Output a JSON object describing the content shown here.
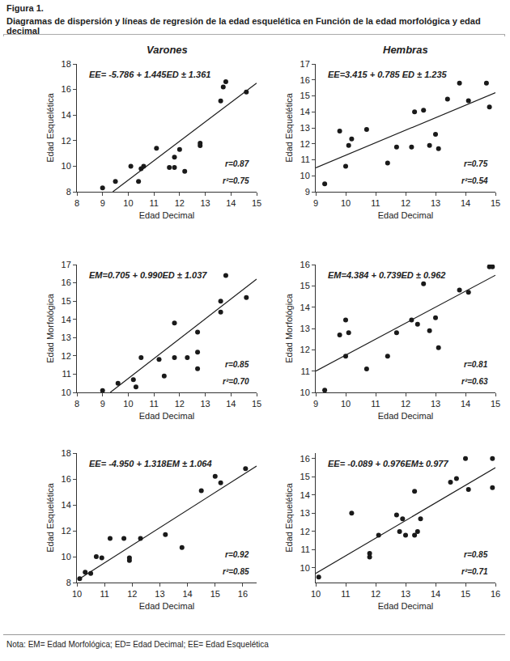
{
  "title": "Figura 1.",
  "subtitle": "Diagramas de dispersión y líneas de regresión de la edad esquelética en Función de la edad morfológica y edad decimal",
  "note": "Nota: EM= Edad Morfológica; ED= Edad Decimal; EE= Edad Esquelética",
  "chart_data": [
    {
      "type": "scatter",
      "title": "Varones",
      "x_label": "Edad Decimal",
      "y_label": "Edad Esquelética",
      "xlim": [
        8,
        15
      ],
      "xticks": [
        8,
        9,
        10,
        11,
        12,
        13,
        14,
        15
      ],
      "ylim": [
        8,
        18
      ],
      "yticks": [
        8,
        10,
        12,
        14,
        16,
        18
      ],
      "series": [
        {
          "type": "scatter",
          "marker": "circle",
          "color": "#1a1a1a",
          "x": [
            9.0,
            9.5,
            10.1,
            10.4,
            10.5,
            10.6,
            11.1,
            11.6,
            11.8,
            11.8,
            12.2,
            12.0,
            12.8,
            12.8,
            13.6,
            13.7,
            13.8,
            14.6
          ],
          "values": [
            8.3,
            8.8,
            10.0,
            8.8,
            9.8,
            10.0,
            11.4,
            9.9,
            10.7,
            9.9,
            9.6,
            11.3,
            11.6,
            11.8,
            15.1,
            16.2,
            16.6,
            15.8
          ]
        },
        {
          "type": "line",
          "color": "#1a1a1a",
          "x": [
            9.4,
            15.0
          ],
          "values": [
            8.0,
            16.5
          ]
        }
      ],
      "annotations": [
        "EE= -5.786 + 1.445ED ± 1.361",
        "r=0.87",
        "r²=0.75"
      ]
    },
    {
      "type": "scatter",
      "title": "Hembras",
      "x_label": "Edad Decimal",
      "y_label": "Edad Esquelética",
      "xlim": [
        9,
        15
      ],
      "xticks": [
        9,
        10,
        11,
        12,
        13,
        14,
        15
      ],
      "ylim": [
        9,
        17
      ],
      "yticks": [
        9,
        10,
        11,
        12,
        13,
        14,
        15,
        16,
        17
      ],
      "series": [
        {
          "type": "scatter",
          "marker": "circle",
          "color": "#1a1a1a",
          "x": [
            9.3,
            9.8,
            10.0,
            10.1,
            10.2,
            10.7,
            11.4,
            11.7,
            12.2,
            12.3,
            12.6,
            12.8,
            13.0,
            13.1,
            13.4,
            13.8,
            14.1,
            14.7,
            14.8
          ],
          "values": [
            9.5,
            12.8,
            10.6,
            11.9,
            12.3,
            12.9,
            10.8,
            11.8,
            11.8,
            14.0,
            14.1,
            11.9,
            12.6,
            11.7,
            14.8,
            15.8,
            14.7,
            15.8,
            14.3
          ]
        },
        {
          "type": "line",
          "color": "#1a1a1a",
          "x": [
            9.0,
            15.0
          ],
          "values": [
            10.5,
            15.2
          ]
        }
      ],
      "annotations": [
        "EE=3.415 + 0.785 ED ± 1.235",
        "r=0.75",
        "r²=0.54"
      ]
    },
    {
      "type": "scatter",
      "x_label": "Edad Decimal",
      "y_label": "Edad Morfológica",
      "xlim": [
        8,
        15
      ],
      "xticks": [
        8,
        9,
        10,
        11,
        12,
        13,
        14,
        15
      ],
      "ylim": [
        10,
        17
      ],
      "yticks": [
        10,
        11,
        12,
        13,
        14,
        15,
        16,
        17
      ],
      "series": [
        {
          "type": "scatter",
          "marker": "circle",
          "color": "#1a1a1a",
          "x": [
            9.0,
            9.6,
            10.2,
            10.3,
            10.5,
            11.2,
            11.4,
            11.8,
            11.8,
            12.3,
            12.7,
            12.7,
            12.7,
            13.6,
            13.6,
            13.8,
            14.6
          ],
          "values": [
            10.1,
            10.5,
            10.7,
            10.3,
            11.9,
            11.8,
            10.9,
            13.8,
            11.9,
            11.9,
            13.3,
            12.2,
            11.3,
            14.4,
            15.0,
            16.4,
            15.2
          ]
        },
        {
          "type": "line",
          "color": "#1a1a1a",
          "x": [
            9.3,
            15.0
          ],
          "values": [
            10.0,
            16.2
          ]
        }
      ],
      "annotations": [
        "EM=0.705 + 0.990ED ± 1.037",
        "r=0.85",
        "r²=0.70"
      ]
    },
    {
      "type": "scatter",
      "x_label": "Edad Decimal",
      "y_label": "Edad Morfológica",
      "xlim": [
        9,
        15
      ],
      "xticks": [
        9,
        10,
        11,
        12,
        13,
        14,
        15
      ],
      "ylim": [
        10,
        16
      ],
      "yticks": [
        10,
        11,
        12,
        13,
        14,
        15,
        16
      ],
      "series": [
        {
          "type": "scatter",
          "marker": "circle",
          "color": "#1a1a1a",
          "x": [
            9.3,
            9.8,
            10.0,
            10.0,
            10.1,
            10.7,
            11.4,
            11.7,
            12.2,
            12.4,
            12.6,
            12.8,
            13.0,
            13.1,
            13.8,
            14.1,
            14.8,
            14.9
          ],
          "values": [
            10.1,
            12.7,
            13.4,
            11.7,
            12.8,
            11.1,
            11.7,
            12.8,
            13.4,
            13.2,
            15.1,
            12.9,
            13.5,
            12.1,
            14.8,
            14.7,
            15.9,
            15.9
          ]
        },
        {
          "type": "line",
          "color": "#1a1a1a",
          "x": [
            9.0,
            15.0
          ],
          "values": [
            11.0,
            15.5
          ]
        }
      ],
      "annotations": [
        "EM=4.384 + 0.739ED ± 0.962",
        "r=0.81",
        "r²=0.63"
      ]
    },
    {
      "type": "scatter",
      "x_label": "Edad Decimal",
      "y_label": "Edad Esquelética",
      "xlim": [
        10,
        16.5
      ],
      "xticks": [
        10,
        11,
        12,
        13,
        14,
        15,
        16
      ],
      "ylim": [
        8,
        18
      ],
      "yticks": [
        8,
        10,
        12,
        14,
        16,
        18
      ],
      "series": [
        {
          "type": "scatter",
          "marker": "circle",
          "color": "#1a1a1a",
          "x": [
            10.1,
            10.3,
            10.5,
            10.7,
            10.9,
            11.2,
            11.7,
            11.9,
            11.9,
            12.3,
            13.2,
            13.8,
            14.5,
            15.0,
            15.2,
            16.1
          ],
          "values": [
            8.3,
            8.8,
            8.7,
            10.0,
            9.9,
            11.4,
            11.4,
            9.9,
            9.7,
            11.4,
            11.7,
            10.7,
            15.1,
            16.2,
            15.7,
            16.8
          ]
        },
        {
          "type": "line",
          "color": "#1a1a1a",
          "x": [
            10.1,
            16.5
          ],
          "values": [
            8.3,
            17.0
          ]
        }
      ],
      "annotations": [
        "EE= -4.950 + 1.318EM ± 1.064",
        "r=0.92",
        "r²=0.85"
      ]
    },
    {
      "type": "scatter",
      "x_label": "Edad Decimal",
      "y_label": "Edad Esquelética",
      "xlim": [
        10,
        16
      ],
      "xticks": [
        10,
        11,
        12,
        13,
        14,
        15,
        16
      ],
      "ylim": [
        9.2,
        16.3
      ],
      "yticks": [
        10,
        11,
        12,
        13,
        14,
        15,
        16
      ],
      "series": [
        {
          "type": "scatter",
          "marker": "circle",
          "color": "#1a1a1a",
          "x": [
            10.1,
            11.2,
            11.8,
            11.8,
            12.1,
            12.7,
            12.8,
            12.9,
            13.0,
            13.3,
            13.3,
            13.4,
            13.5,
            14.5,
            14.7,
            15.0,
            15.1,
            15.9,
            15.9
          ],
          "values": [
            9.5,
            13.0,
            10.8,
            10.6,
            11.8,
            12.9,
            12.0,
            12.7,
            11.8,
            14.2,
            11.8,
            12.0,
            12.7,
            14.7,
            14.9,
            16.0,
            14.3,
            16.0,
            14.4
          ]
        },
        {
          "type": "line",
          "color": "#1a1a1a",
          "x": [
            10.0,
            16.0
          ],
          "values": [
            9.7,
            15.5
          ]
        }
      ],
      "annotations": [
        "EE= -0.089 + 0.976EM± 0.977",
        "r=0.85",
        "r²=0.71"
      ]
    }
  ]
}
